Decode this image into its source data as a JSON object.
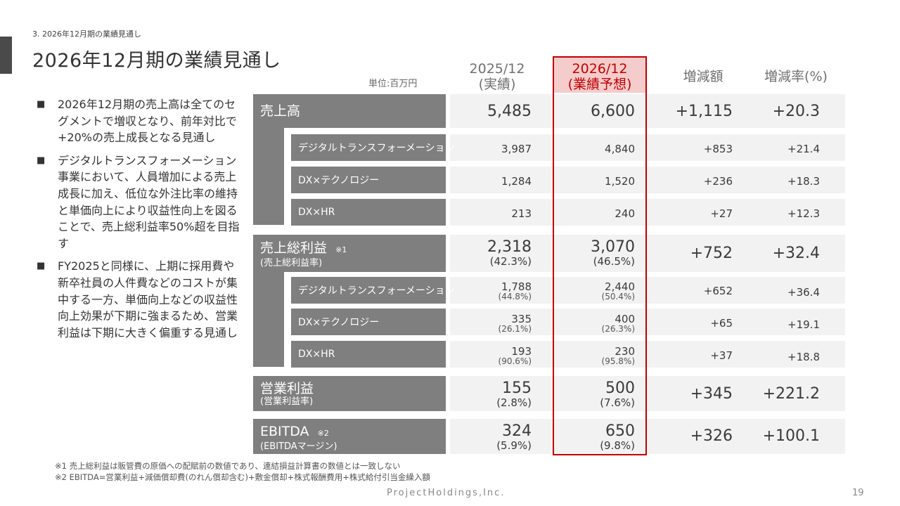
{
  "breadcrumb": "3. 2026年12月期の業績見通し",
  "title": "2026年12月期の業績見通し",
  "unit_label": "単位:百万円",
  "columns": {
    "fy2025": {
      "year": "2025/12",
      "note": "(実績)"
    },
    "fy2026": {
      "year": "2026/12",
      "note": "(業績予想)"
    },
    "change": "増減額",
    "rate": "増減率(%)"
  },
  "bullets": [
    "2026年12月期の売上高は全てのセグメントで増収となり、前年対比で+20%の売上成長となる見通し",
    "デジタルトランスフォーメーション事業において、人員増加による売上成長に加え、低位な外注比率の維持と単価向上により収益性向上を図ることで、売上総利益率50%超を目指す",
    "FY2025と同様に、上期に採用費や新卒社員の人件費などのコストが集中する一方、単価向上などの収益性向上効果が下期に強まるため、営業利益は下期に大きく偏重する見通し"
  ],
  "bullet_mark": "■",
  "table": {
    "revenue": {
      "label": "売上高",
      "fy2025": "5,485",
      "fy2026": "6,600",
      "change": "+1,115",
      "rate": "+20.3",
      "segments": [
        {
          "label": "デジタルトランスフォーメーション",
          "fy2025": "3,987",
          "fy2026": "4,840",
          "change": "+853",
          "rate": "+21.4"
        },
        {
          "label": "DX×テクノロジー",
          "fy2025": "1,284",
          "fy2026": "1,520",
          "change": "+236",
          "rate": "+18.3"
        },
        {
          "label": "DX×HR",
          "fy2025": "213",
          "fy2026": "240",
          "change": "+27",
          "rate": "+12.3"
        }
      ]
    },
    "gross_profit": {
      "label": "売上総利益",
      "note": "※1",
      "sublabel": "(売上総利益率)",
      "fy2025": "2,318",
      "fy2025_pct": "(42.3%)",
      "fy2026": "3,070",
      "fy2026_pct": "(46.5%)",
      "change": "+752",
      "rate": "+32.4",
      "segments": [
        {
          "label": "デジタルトランスフォーメーション",
          "fy2025": "1,788",
          "fy2025_pct": "(44.8%)",
          "fy2026": "2,440",
          "fy2026_pct": "(50.4%)",
          "change": "+652",
          "rate": "+36.4"
        },
        {
          "label": "DX×テクノロジー",
          "fy2025": "335",
          "fy2025_pct": "(26.1%)",
          "fy2026": "400",
          "fy2026_pct": "(26.3%)",
          "change": "+65",
          "rate": "+19.1"
        },
        {
          "label": "DX×HR",
          "fy2025": "193",
          "fy2025_pct": "(90.6%)",
          "fy2026": "230",
          "fy2026_pct": "(95.8%)",
          "change": "+37",
          "rate": "+18.8"
        }
      ]
    },
    "operating_profit": {
      "label": "営業利益",
      "sublabel": "(営業利益率)",
      "fy2025": "155",
      "fy2025_pct": "(2.8%)",
      "fy2026": "500",
      "fy2026_pct": "(7.6%)",
      "change": "+345",
      "rate": "+221.2"
    },
    "ebitda": {
      "label": "EBITDA",
      "note": "※2",
      "sublabel": "(EBITDAマージン)",
      "fy2025": "324",
      "fy2025_pct": "(5.9%)",
      "fy2026": "650",
      "fy2026_pct": "(9.8%)",
      "change": "+326",
      "rate": "+100.1"
    }
  },
  "footnotes": [
    "※1  売上総利益は販管費の原価への配賦前の数値であり、連結損益計算書の数値とは一致しない",
    "※2  EBITDA=営業利益+減価償却費(のれん償却含む)+敷金償却+株式報酬費用+株式給付引当金繰入額"
  ],
  "footer": {
    "company": "ProjectHoldings,Inc.",
    "page": "19"
  },
  "colors": {
    "label_bg": "#7f7f7f",
    "value_bg": "#f2f2f2",
    "highlight": "#c00000",
    "highlight_bg": "#f4cccc"
  }
}
